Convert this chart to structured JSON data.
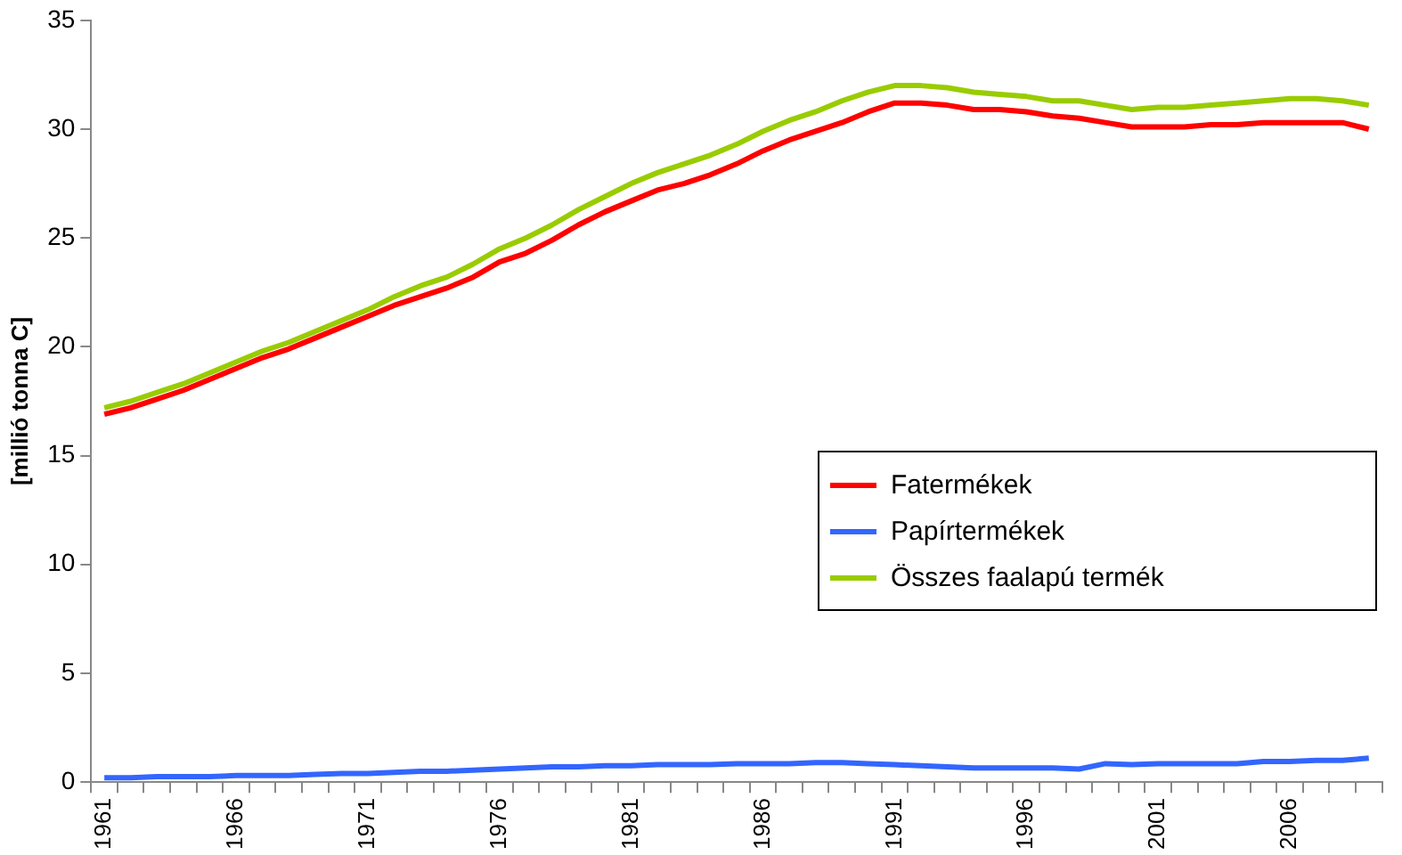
{
  "chart_data": {
    "type": "line",
    "ylabel": "[millió tonna C]",
    "categories": [
      "1961",
      null,
      null,
      null,
      null,
      "1966",
      null,
      null,
      null,
      null,
      "1971",
      null,
      null,
      null,
      null,
      "1976",
      null,
      null,
      null,
      null,
      "1981",
      null,
      null,
      null,
      null,
      "1986",
      null,
      null,
      null,
      null,
      "1991",
      null,
      null,
      null,
      null,
      "1996",
      null,
      null,
      null,
      null,
      "2001",
      null,
      null,
      null,
      null,
      "2006",
      null,
      null,
      null
    ],
    "series": [
      {
        "name": "Fatermékek",
        "color": "#ff0000",
        "values": [
          16.9,
          17.2,
          17.6,
          18.0,
          18.5,
          19.0,
          19.5,
          19.9,
          20.4,
          20.9,
          21.4,
          21.9,
          22.3,
          22.7,
          23.2,
          23.9,
          24.3,
          24.9,
          25.6,
          26.2,
          26.7,
          27.2,
          27.5,
          27.9,
          28.4,
          29.0,
          29.5,
          29.9,
          30.3,
          30.8,
          31.2,
          31.2,
          31.1,
          30.9,
          30.9,
          30.8,
          30.6,
          30.5,
          30.3,
          30.1,
          30.1,
          30.1,
          30.2,
          30.2,
          30.3,
          30.3,
          30.3,
          30.3,
          30.0
        ]
      },
      {
        "name": "Papírtermékek",
        "color": "#3366ff",
        "values": [
          0.2,
          0.2,
          0.25,
          0.25,
          0.25,
          0.3,
          0.3,
          0.3,
          0.35,
          0.4,
          0.4,
          0.45,
          0.5,
          0.5,
          0.55,
          0.6,
          0.65,
          0.7,
          0.7,
          0.75,
          0.75,
          0.8,
          0.8,
          0.8,
          0.85,
          0.85,
          0.85,
          0.9,
          0.9,
          0.85,
          0.8,
          0.75,
          0.7,
          0.65,
          0.65,
          0.65,
          0.65,
          0.6,
          0.85,
          0.8,
          0.85,
          0.85,
          0.85,
          0.85,
          0.95,
          0.95,
          1.0,
          1.0,
          1.1
        ]
      },
      {
        "name": "Összes faalapú termék",
        "color": "#99cc00",
        "values": [
          17.2,
          17.5,
          17.9,
          18.3,
          18.8,
          19.3,
          19.8,
          20.2,
          20.7,
          21.2,
          21.7,
          22.3,
          22.8,
          23.2,
          23.8,
          24.5,
          25.0,
          25.6,
          26.3,
          26.9,
          27.5,
          28.0,
          28.4,
          28.8,
          29.3,
          29.9,
          30.4,
          30.8,
          31.3,
          31.7,
          32.0,
          32.0,
          31.9,
          31.7,
          31.6,
          31.5,
          31.3,
          31.3,
          31.1,
          30.9,
          31.0,
          31.0,
          31.1,
          31.2,
          31.3,
          31.4,
          31.4,
          31.3,
          31.1
        ]
      }
    ],
    "ylim": [
      0,
      35
    ],
    "yticks": [
      0,
      5,
      10,
      15,
      20,
      25,
      30,
      35
    ],
    "grid": false,
    "legend": "right",
    "marker": "none",
    "line_style": "solid"
  }
}
